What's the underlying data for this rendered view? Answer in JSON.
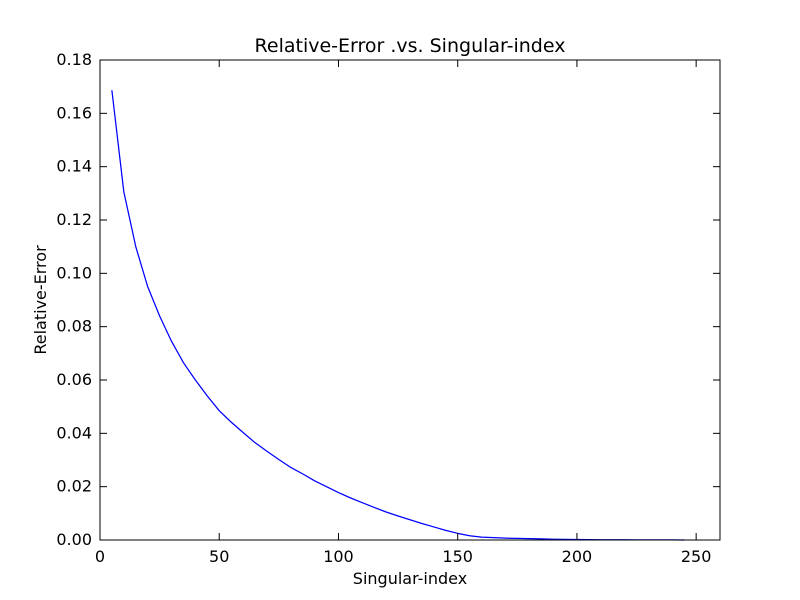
{
  "chart_data": {
    "type": "line",
    "title": "Relative-Error .vs. Singular-index",
    "xlabel": "Singular-index",
    "ylabel": "Relative-Error",
    "xlim": [
      0,
      260
    ],
    "ylim": [
      0,
      0.18
    ],
    "xticks": [
      0,
      50,
      100,
      150,
      200,
      250
    ],
    "yticks": [
      0.0,
      0.02,
      0.04,
      0.06,
      0.08,
      0.1,
      0.12,
      0.14,
      0.16,
      0.18
    ],
    "xtick_labels": [
      "0",
      "50",
      "100",
      "150",
      "200",
      "250"
    ],
    "ytick_labels": [
      "0.00",
      "0.02",
      "0.04",
      "0.06",
      "0.08",
      "0.10",
      "0.12",
      "0.14",
      "0.16",
      "0.18"
    ],
    "grid": false,
    "line_color": "#0000ff",
    "series": [
      {
        "x": [
          5,
          10,
          15,
          20,
          25,
          30,
          35,
          40,
          45,
          50,
          55,
          60,
          65,
          70,
          75,
          80,
          85,
          90,
          95,
          100,
          105,
          110,
          115,
          120,
          125,
          130,
          135,
          140,
          145,
          150,
          155,
          160,
          165,
          170,
          175,
          180,
          185,
          190,
          195,
          200,
          205,
          210,
          215,
          220,
          225,
          230,
          235,
          240,
          245
        ],
        "values": [
          0.1685,
          0.1305,
          0.11,
          0.095,
          0.084,
          0.0745,
          0.0665,
          0.06,
          0.054,
          0.0485,
          0.0442,
          0.0403,
          0.0365,
          0.0333,
          0.0302,
          0.0272,
          0.0248,
          0.0222,
          0.02,
          0.0178,
          0.0158,
          0.014,
          0.0122,
          0.0105,
          0.009,
          0.0076,
          0.0062,
          0.0049,
          0.0036,
          0.0025,
          0.0016,
          0.0011,
          0.0009,
          0.0007,
          0.0006,
          0.0005,
          0.0004,
          0.0003,
          0.00025,
          0.0002,
          0.00015,
          0.0001,
          0.0001,
          8e-05,
          6e-05,
          5e-05,
          4e-05,
          3e-05,
          2e-05
        ]
      }
    ]
  }
}
